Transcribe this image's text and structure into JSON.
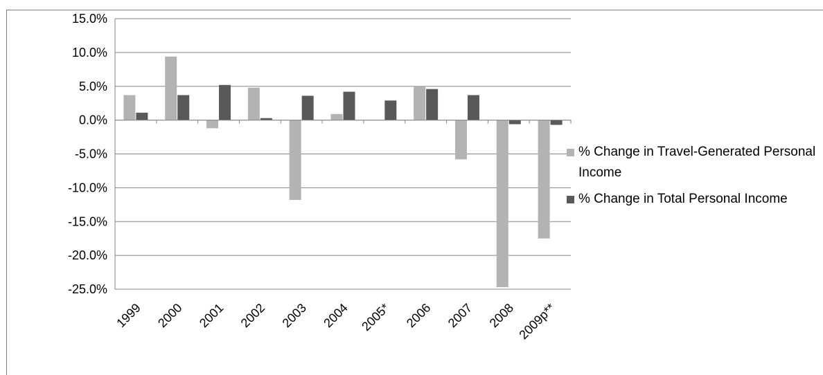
{
  "chart_data": {
    "type": "bar",
    "title": "",
    "xlabel": "",
    "ylabel": "",
    "categories": [
      "1999",
      "2000",
      "2001",
      "2002",
      "2003",
      "2004",
      "2005*",
      "2006",
      "2007",
      "2008",
      "2009p**"
    ],
    "series": [
      {
        "name": "% Change in Travel-Generated Personal Income",
        "color": "#b3b3b3",
        "values": [
          3.7,
          9.4,
          -1.2,
          4.8,
          -11.8,
          0.9,
          0.0,
          5.0,
          -5.8,
          -24.7,
          -17.5
        ]
      },
      {
        "name": "% Change in Total Personal Income",
        "color": "#595959",
        "values": [
          1.1,
          3.7,
          5.2,
          0.3,
          3.6,
          4.2,
          2.9,
          4.6,
          3.7,
          -0.6,
          -0.7
        ]
      }
    ],
    "ylim": [
      -25,
      15
    ],
    "y_ticks": [
      15,
      10,
      5,
      0,
      -5,
      -10,
      -15,
      -20,
      -25
    ],
    "y_tick_labels": [
      "15.0%",
      "10.0%",
      "5.0%",
      "0.0%",
      "-5.0%",
      "-10.0%",
      "-15.0%",
      "-20.0%",
      "-25.0%"
    ],
    "grid": true,
    "legend_position": "right"
  }
}
